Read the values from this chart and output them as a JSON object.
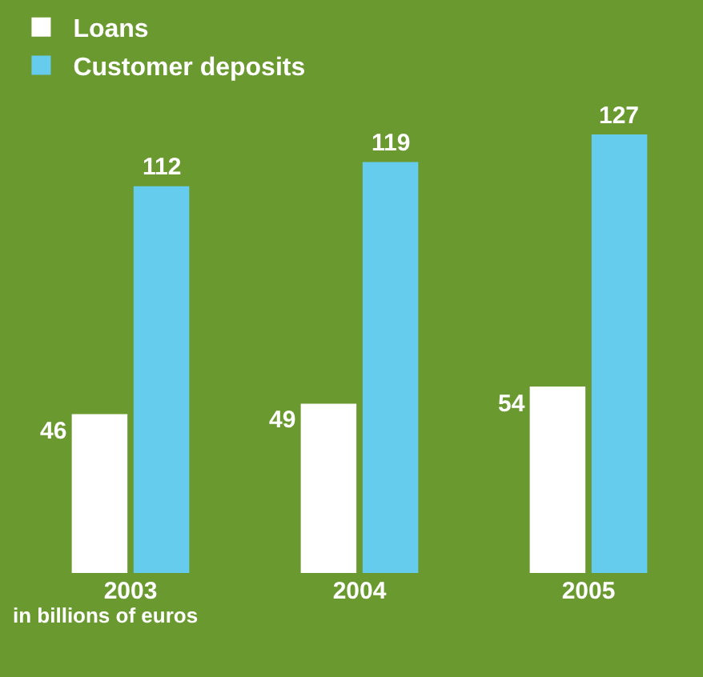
{
  "chart_data": {
    "type": "bar",
    "categories": [
      "2003",
      "2004",
      "2005"
    ],
    "series": [
      {
        "name": "Loans",
        "color": "#ffffff",
        "values": [
          46,
          49,
          54
        ]
      },
      {
        "name": "Customer deposits",
        "color": "#66ccee",
        "values": [
          112,
          119,
          127
        ]
      }
    ],
    "tick_labels": "x",
    "grid": false,
    "legend": "top left",
    "data_labels": true,
    "annotations": [
      "in billions of euros"
    ]
  }
}
